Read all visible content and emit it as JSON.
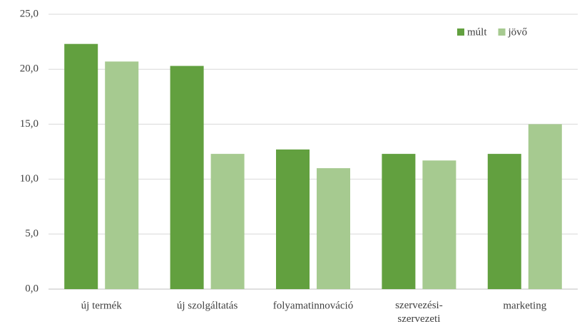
{
  "chart_data": {
    "type": "bar",
    "categories": [
      "új termék",
      "új szolgáltatás",
      "folyamatinnováció",
      "szervezési-szervezeti",
      "marketing"
    ],
    "series": [
      {
        "name": "múlt",
        "color": "#62a03f",
        "values": [
          22.3,
          20.3,
          12.7,
          12.3,
          12.3
        ]
      },
      {
        "name": "jövő",
        "color": "#a6ca90",
        "values": [
          20.7,
          12.3,
          11.0,
          11.7,
          15.0
        ]
      }
    ],
    "ylim": [
      0,
      25
    ],
    "yticks": [
      {
        "value": 0,
        "label": "0,0"
      },
      {
        "value": 5,
        "label": "5,0"
      },
      {
        "value": 10,
        "label": "10,0"
      },
      {
        "value": 15,
        "label": "15,0"
      },
      {
        "value": 20,
        "label": "20,0"
      },
      {
        "value": 25,
        "label": "25,0"
      }
    ],
    "grid": true,
    "legend": "top-right"
  }
}
